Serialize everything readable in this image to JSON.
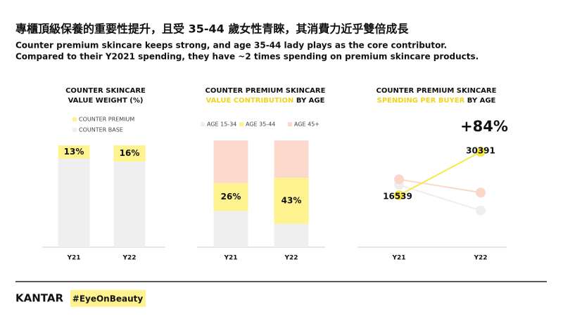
{
  "header": {
    "title": "專櫃頂級保養的重要性提升，且受 35-44 歲女性青睞，其消費力近乎雙倍成長",
    "subtitle_lines": [
      "Counter premium skincare keeps strong, and age 35-44 lady plays as the core contributor.",
      "Compared to their Y2021 spending, they have ~2 times spending on premium skincare products."
    ]
  },
  "chart_data": [
    {
      "type": "bar",
      "stacked": true,
      "title": "COUNTER SKINCARE",
      "subtitle": "VALUE WEIGHT (%)",
      "categories": [
        "Y21",
        "Y22"
      ],
      "ylim": [
        0,
        100
      ],
      "series": [
        {
          "name": "COUNTER PREMIUM",
          "color": "#fff38f",
          "values": [
            13,
            16
          ],
          "value_labels": [
            "13%",
            "16%"
          ]
        },
        {
          "name": "COUNTER BASE",
          "color": "#efefef",
          "values": [
            87,
            84
          ]
        }
      ]
    },
    {
      "type": "bar",
      "stacked": true,
      "title": "COUNTER PREMIUM SKINCARE",
      "subtitle_highlight": "VALUE CONTRIBUTION",
      "subtitle": "BY AGE",
      "highlight_color": "#f2d21b",
      "categories": [
        "Y21",
        "Y22"
      ],
      "ylim": [
        0,
        100
      ],
      "series": [
        {
          "name": "AGE 15-34",
          "color": "#efefef",
          "values": [
            34,
            22
          ]
        },
        {
          "name": "AGE 35-44",
          "color": "#fff38f",
          "values": [
            26,
            43
          ],
          "value_labels": [
            "26%",
            "43%"
          ]
        },
        {
          "name": "AGE 45+",
          "color": "#fcd9cc",
          "values": [
            40,
            35
          ]
        }
      ]
    },
    {
      "type": "line",
      "title": "COUNTER PREMIUM SKINCARE",
      "subtitle_highlight": "SPENDING PER BUYER",
      "subtitle": "BY AGE",
      "highlight_color": "#f2d21b",
      "categories": [
        "Y21",
        "Y22"
      ],
      "ylim": [
        0,
        34000
      ],
      "annotation": "+84%",
      "annotation_color": "#f7e33c",
      "series": [
        {
          "name": "AGE 15-34",
          "color": "#eeeeee",
          "values": [
            19840,
            11700
          ]
        },
        {
          "name": "AGE 45+",
          "color": "#fbd7ca",
          "values": [
            21600,
            17400
          ]
        },
        {
          "name": "AGE 35-44",
          "color": "#f7e84a",
          "values": [
            16539,
            30391
          ],
          "show_labels": true
        }
      ]
    }
  ],
  "footer": {
    "brand": "KANTAR",
    "tag": "#EyeOnBeauty"
  }
}
